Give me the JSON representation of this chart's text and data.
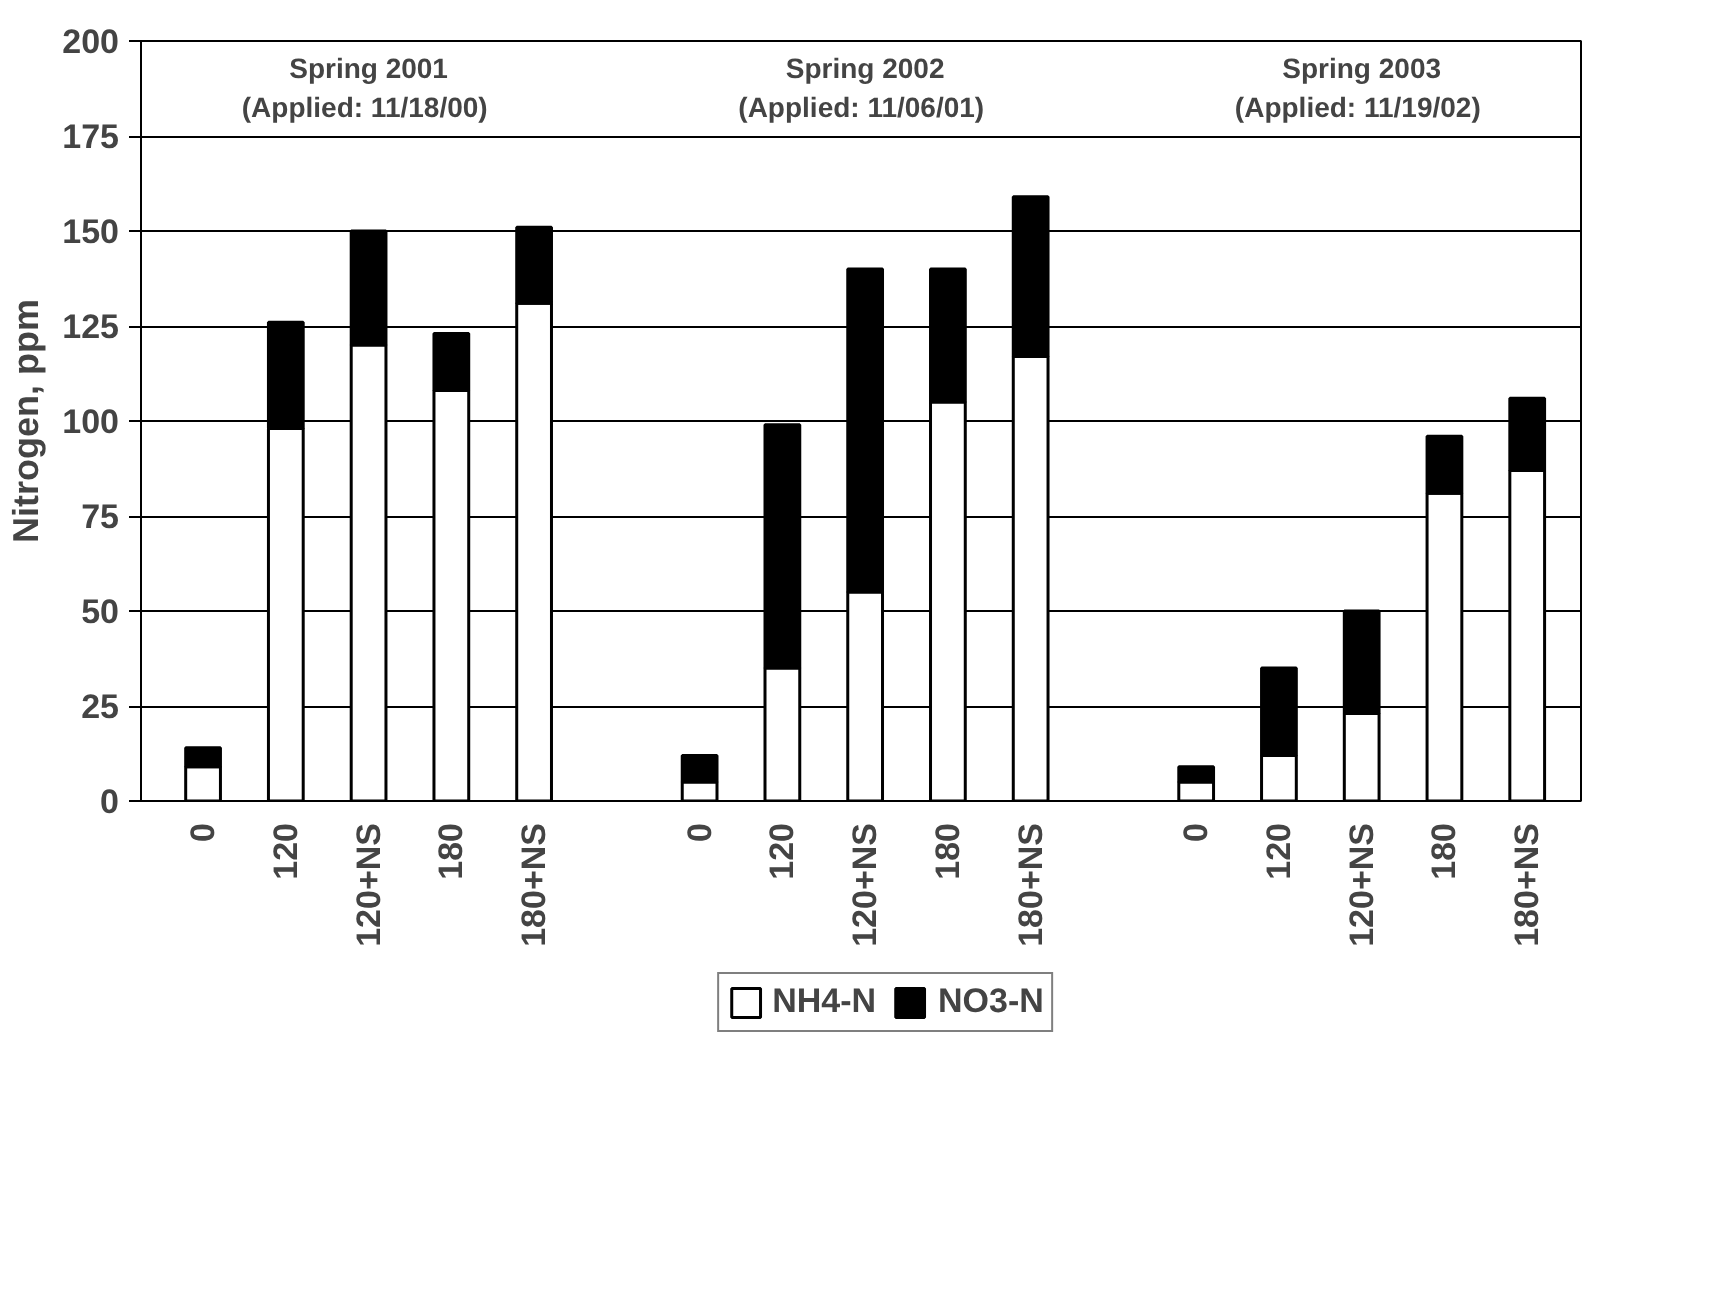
{
  "chart_data": {
    "type": "bar",
    "stacked": true,
    "ylabel": "Nitrogen, ppm",
    "categories": [
      "0",
      "120",
      "120+NS",
      "180",
      "180+NS",
      null,
      "0",
      "120",
      "120+NS",
      "180",
      "180+NS",
      null,
      "0",
      "120",
      "120+NS",
      "180",
      "180+NS"
    ],
    "series": [
      {
        "name": "NH4-N",
        "color": "#ffffff",
        "values": [
          9,
          98,
          120,
          108,
          131,
          null,
          5,
          35,
          55,
          105,
          117,
          null,
          5,
          12,
          23,
          81,
          87
        ]
      },
      {
        "name": "NO3-N",
        "color": "#000000",
        "values": [
          5,
          28,
          30,
          15,
          20,
          null,
          7,
          64,
          85,
          35,
          42,
          null,
          4,
          23,
          27,
          15,
          19
        ]
      }
    ],
    "annotations": [
      "Spring 2001\n(Applied:  11/18/00)",
      "Spring 2002\n(Applied:  11/06/01)",
      "Spring 2003\n(Applied:  11/19/02)"
    ],
    "ylim": [
      0,
      200
    ],
    "yticks": [
      0,
      25,
      50,
      75,
      100,
      125,
      150,
      175,
      200
    ],
    "grid": "y",
    "legend": "bottom"
  }
}
